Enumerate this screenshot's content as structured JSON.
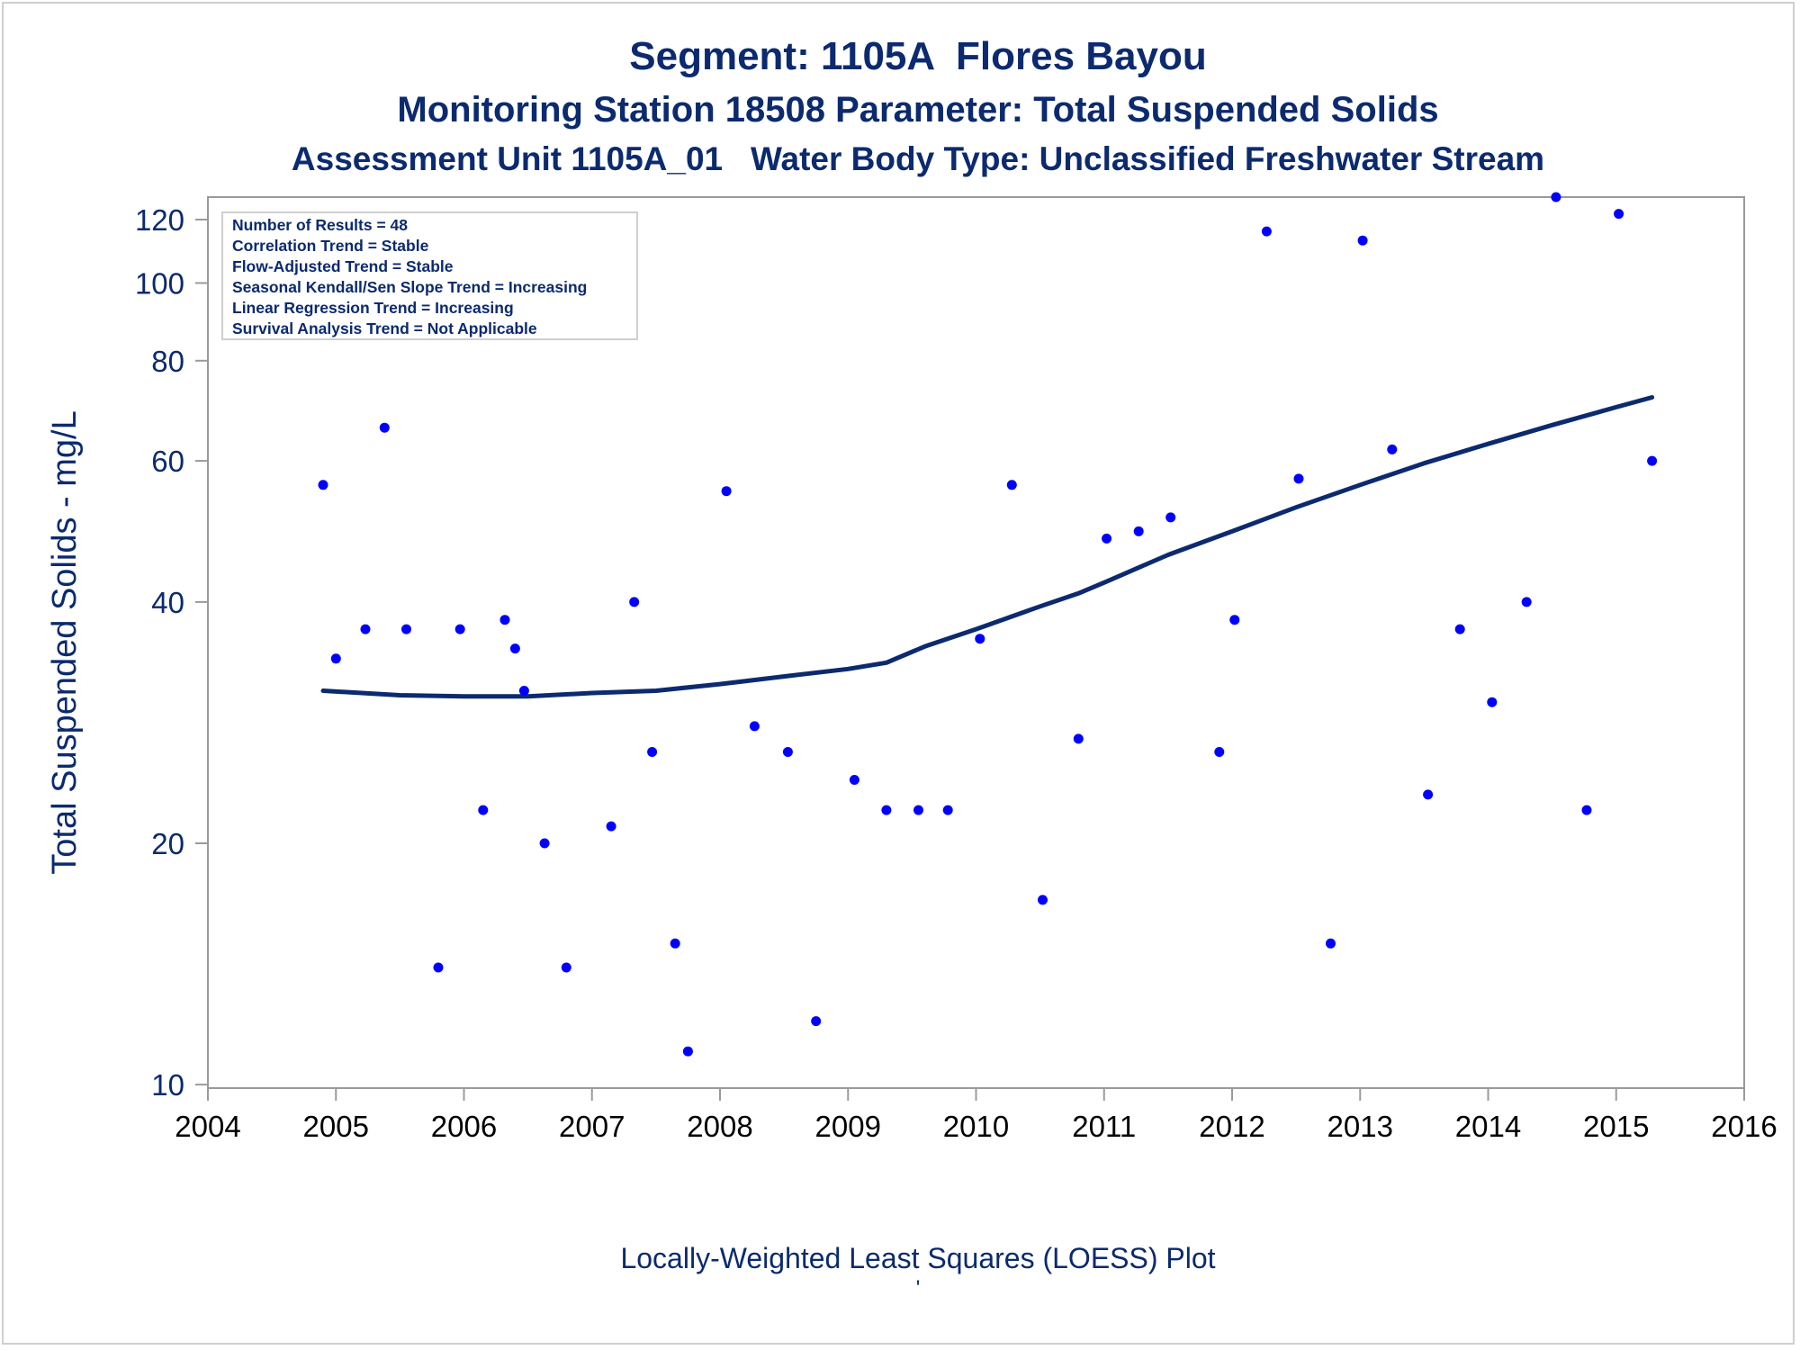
{
  "titles": {
    "line1": "Segment: 1105A  Flores Bayou",
    "line2": "Monitoring Station 18508 Parameter: Total Suspended Solids",
    "line3": "Assessment Unit 1105A_01   Water Body Type: Unclassified Freshwater Stream"
  },
  "footer": {
    "caption": "Locally-Weighted Least Squares (LOESS) Plot",
    "mark": "'"
  },
  "stats_box": [
    "Number of Results = 48",
    "Correlation Trend = Stable",
    "Flow-Adjusted Trend = Stable",
    "Seasonal Kendall/Sen Slope Trend = Increasing",
    "Linear Regression Trend = Increasing",
    "Survival Analysis Trend = Not Applicable"
  ],
  "colors": {
    "text": "#0b2a6f",
    "points": "#0000ff",
    "loess_line": "#0b2a6f",
    "axis": "#9a9a9a"
  },
  "chart_data": {
    "type": "scatter",
    "title": "Segment: 1105A  Flores Bayou",
    "xlabel": "",
    "ylabel": "Total Suspended Solids - mg/L",
    "y_scale": "log",
    "xlim": [
      2004,
      2016
    ],
    "ylim": [
      9.9,
      128
    ],
    "x_ticks": [
      2004,
      2005,
      2006,
      2007,
      2008,
      2009,
      2010,
      2011,
      2012,
      2013,
      2014,
      2015,
      2016
    ],
    "y_ticks": [
      10,
      20,
      40,
      60,
      80,
      100,
      120
    ],
    "grid": false,
    "legend": "none",
    "series": [
      {
        "points": [
          [
            2004.9,
            56
          ],
          [
            2005.0,
            34
          ],
          [
            2005.23,
            37
          ],
          [
            2005.38,
            66
          ],
          [
            2005.55,
            37
          ],
          [
            2005.8,
            14
          ],
          [
            2005.97,
            37
          ],
          [
            2006.15,
            22
          ],
          [
            2006.32,
            38
          ],
          [
            2006.4,
            35
          ],
          [
            2006.47,
            31
          ],
          [
            2006.63,
            20
          ],
          [
            2006.8,
            14
          ],
          [
            2007.15,
            21
          ],
          [
            2007.33,
            40
          ],
          [
            2007.47,
            26
          ],
          [
            2007.65,
            15
          ],
          [
            2007.75,
            11
          ],
          [
            2008.05,
            55
          ],
          [
            2008.27,
            28
          ],
          [
            2008.53,
            26
          ],
          [
            2008.75,
            12
          ],
          [
            2009.05,
            24
          ],
          [
            2009.3,
            22
          ],
          [
            2009.55,
            22
          ],
          [
            2009.78,
            22
          ],
          [
            2010.03,
            36
          ],
          [
            2010.28,
            56
          ],
          [
            2010.52,
            17
          ],
          [
            2010.8,
            27
          ],
          [
            2011.02,
            48
          ],
          [
            2011.27,
            49
          ],
          [
            2011.52,
            51
          ],
          [
            2011.9,
            26
          ],
          [
            2012.02,
            38
          ],
          [
            2012.27,
            116
          ],
          [
            2012.52,
            57
          ],
          [
            2012.77,
            15
          ],
          [
            2013.02,
            113
          ],
          [
            2013.25,
            62
          ],
          [
            2013.53,
            23
          ],
          [
            2013.78,
            37
          ],
          [
            2014.03,
            30
          ],
          [
            2014.3,
            40
          ],
          [
            2014.53,
            128
          ],
          [
            2014.77,
            22
          ],
          [
            2015.02,
            122
          ],
          [
            2015.28,
            60
          ]
        ]
      },
      {
        "line": [
          [
            2004.9,
            31
          ],
          [
            2005.5,
            30.6
          ],
          [
            2006.0,
            30.5
          ],
          [
            2006.5,
            30.5
          ],
          [
            2007.0,
            30.8
          ],
          [
            2007.5,
            31.0
          ],
          [
            2008.0,
            31.6
          ],
          [
            2008.5,
            32.3
          ],
          [
            2009.0,
            33.0
          ],
          [
            2009.3,
            33.6
          ],
          [
            2009.6,
            35.2
          ],
          [
            2010.0,
            37.0
          ],
          [
            2010.5,
            39.5
          ],
          [
            2010.8,
            41.0
          ],
          [
            2011.0,
            42.3
          ],
          [
            2011.5,
            45.8
          ],
          [
            2012.0,
            49.0
          ],
          [
            2012.5,
            52.5
          ],
          [
            2013.0,
            56.0
          ],
          [
            2013.5,
            59.6
          ],
          [
            2014.0,
            63.0
          ],
          [
            2014.5,
            66.5
          ],
          [
            2015.0,
            70.0
          ],
          [
            2015.28,
            72.0
          ]
        ]
      }
    ]
  }
}
